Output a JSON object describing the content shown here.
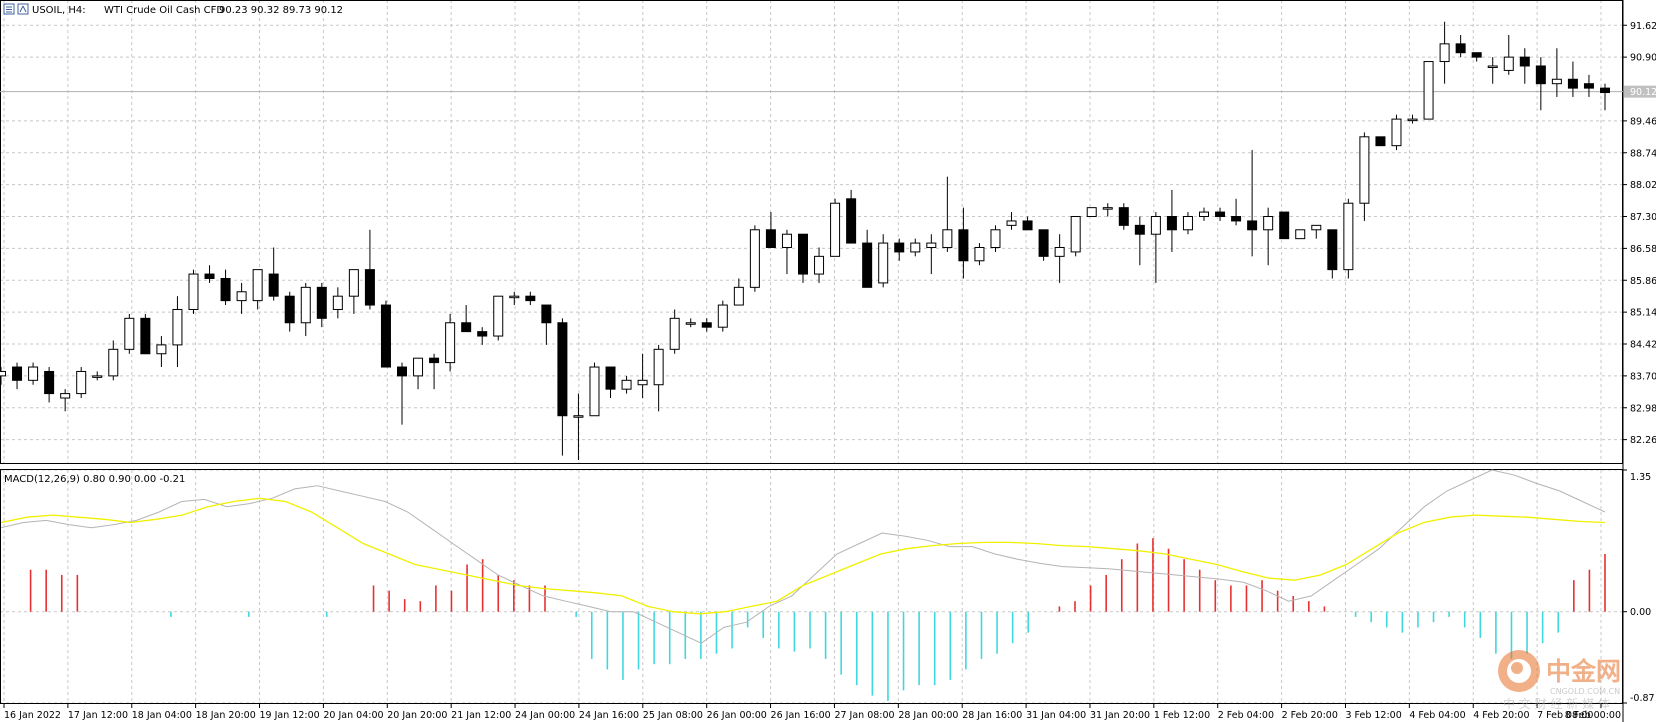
{
  "header": {
    "symbol": "USOIL, H4:",
    "description": "WTI Crude Oil Cash CFD",
    "ohlc": "90.23 90.32 89.73 90.12"
  },
  "macd_header": {
    "label": "MACD(12,26,9) 0.80 0.90 0.00 -0.21"
  },
  "price_axis": {
    "labels": [
      "91.62",
      "90.90",
      "89.46",
      "88.74",
      "88.02",
      "87.30",
      "86.58",
      "85.86",
      "85.14",
      "84.42",
      "83.70",
      "82.98",
      "82.26"
    ],
    "current_price_label": "90.12"
  },
  "macd_axis": {
    "labels": [
      "1.35",
      "0.00",
      "-0.87"
    ]
  },
  "time_axis": {
    "labels": [
      "16 Jan 2022",
      "17 Jan 12:00",
      "18 Jan 04:00",
      "18 Jan 20:00",
      "19 Jan 12:00",
      "20 Jan 04:00",
      "20 Jan 20:00",
      "21 Jan 12:00",
      "24 Jan 00:00",
      "24 Jan 16:00",
      "25 Jan 08:00",
      "26 Jan 00:00",
      "26 Jan 16:00",
      "27 Jan 08:00",
      "28 Jan 00:00",
      "28 Jan 16:00",
      "31 Jan 04:00",
      "31 Jan 20:00",
      "1 Feb 12:00",
      "2 Feb 04:00",
      "2 Feb 20:00",
      "3 Feb 12:00",
      "4 Feb 04:00",
      "4 Feb 20:00",
      "7 Feb 08:00",
      "8 Feb 00:00"
    ]
  },
  "watermark": {
    "brand": "中金网",
    "site": "CNGOLD.COM.CN",
    "slogan": "中 文 财 经 新 媒 体"
  },
  "colors": {
    "bull_body": "#ffffff",
    "bear_body": "#000000",
    "candle_outline": "#000000",
    "grid": "#c8c8c8",
    "macd_line": "#b4b4b4",
    "signal_line": "#f0f000",
    "hist_positive": "#e83030",
    "hist_negative": "#40d8e0",
    "watermark_orange": "#e8702a"
  },
  "chart_data": [
    {
      "type": "candlestick",
      "title": "USOIL, H4: WTI Crude Oil Cash CFD",
      "ylim": [
        81.8,
        92.1
      ],
      "candles": [
        {
          "o": 83.7,
          "h": 83.9,
          "l": 83.5,
          "c": 83.8
        },
        {
          "o": 83.9,
          "h": 84.0,
          "l": 83.4,
          "c": 83.6
        },
        {
          "o": 83.6,
          "h": 84.0,
          "l": 83.5,
          "c": 83.9
        },
        {
          "o": 83.8,
          "h": 83.9,
          "l": 83.1,
          "c": 83.3
        },
        {
          "o": 83.2,
          "h": 83.4,
          "l": 82.9,
          "c": 83.3
        },
        {
          "o": 83.3,
          "h": 83.9,
          "l": 83.2,
          "c": 83.8
        },
        {
          "o": 83.7,
          "h": 83.8,
          "l": 83.6,
          "c": 83.7
        },
        {
          "o": 83.7,
          "h": 84.5,
          "l": 83.6,
          "c": 84.3
        },
        {
          "o": 84.3,
          "h": 85.1,
          "l": 84.2,
          "c": 85.0
        },
        {
          "o": 85.0,
          "h": 85.1,
          "l": 84.2,
          "c": 84.2
        },
        {
          "o": 84.2,
          "h": 84.6,
          "l": 83.9,
          "c": 84.4
        },
        {
          "o": 84.4,
          "h": 85.5,
          "l": 83.9,
          "c": 85.2
        },
        {
          "o": 85.2,
          "h": 86.1,
          "l": 85.1,
          "c": 86.0
        },
        {
          "o": 86.0,
          "h": 86.2,
          "l": 85.8,
          "c": 85.9
        },
        {
          "o": 85.9,
          "h": 86.1,
          "l": 85.3,
          "c": 85.4
        },
        {
          "o": 85.4,
          "h": 85.8,
          "l": 85.1,
          "c": 85.6
        },
        {
          "o": 85.4,
          "h": 86.1,
          "l": 85.2,
          "c": 86.1
        },
        {
          "o": 86.0,
          "h": 86.6,
          "l": 85.4,
          "c": 85.5
        },
        {
          "o": 85.5,
          "h": 85.6,
          "l": 84.7,
          "c": 84.9
        },
        {
          "o": 84.9,
          "h": 85.8,
          "l": 84.6,
          "c": 85.7
        },
        {
          "o": 85.7,
          "h": 85.8,
          "l": 84.8,
          "c": 85.0
        },
        {
          "o": 85.2,
          "h": 85.7,
          "l": 85.0,
          "c": 85.5
        },
        {
          "o": 85.5,
          "h": 86.1,
          "l": 85.1,
          "c": 86.1
        },
        {
          "o": 86.1,
          "h": 87.0,
          "l": 85.2,
          "c": 85.3
        },
        {
          "o": 85.3,
          "h": 85.4,
          "l": 83.9,
          "c": 83.9
        },
        {
          "o": 83.9,
          "h": 84.0,
          "l": 82.6,
          "c": 83.7
        },
        {
          "o": 83.7,
          "h": 84.1,
          "l": 83.4,
          "c": 84.1
        },
        {
          "o": 84.1,
          "h": 84.2,
          "l": 83.4,
          "c": 84.0
        },
        {
          "o": 84.0,
          "h": 85.1,
          "l": 83.8,
          "c": 84.9
        },
        {
          "o": 84.9,
          "h": 85.3,
          "l": 84.7,
          "c": 84.7
        },
        {
          "o": 84.7,
          "h": 84.8,
          "l": 84.4,
          "c": 84.6
        },
        {
          "o": 84.6,
          "h": 85.5,
          "l": 84.5,
          "c": 85.5
        },
        {
          "o": 85.5,
          "h": 85.6,
          "l": 85.3,
          "c": 85.5
        },
        {
          "o": 85.5,
          "h": 85.6,
          "l": 85.3,
          "c": 85.4
        },
        {
          "o": 85.3,
          "h": 85.3,
          "l": 84.4,
          "c": 84.9
        },
        {
          "o": 84.9,
          "h": 85.0,
          "l": 81.9,
          "c": 82.8
        },
        {
          "o": 82.8,
          "h": 83.3,
          "l": 81.8,
          "c": 82.8
        },
        {
          "o": 82.8,
          "h": 84.0,
          "l": 82.8,
          "c": 83.9
        },
        {
          "o": 83.9,
          "h": 83.9,
          "l": 83.2,
          "c": 83.4
        },
        {
          "o": 83.4,
          "h": 83.7,
          "l": 83.3,
          "c": 83.6
        },
        {
          "o": 83.5,
          "h": 84.2,
          "l": 83.2,
          "c": 83.6
        },
        {
          "o": 83.5,
          "h": 84.4,
          "l": 82.9,
          "c": 84.3
        },
        {
          "o": 84.3,
          "h": 85.2,
          "l": 84.2,
          "c": 85.0
        },
        {
          "o": 84.9,
          "h": 85.0,
          "l": 84.8,
          "c": 84.9
        },
        {
          "o": 84.9,
          "h": 85.0,
          "l": 84.7,
          "c": 84.8
        },
        {
          "o": 84.8,
          "h": 85.4,
          "l": 84.7,
          "c": 85.3
        },
        {
          "o": 85.3,
          "h": 85.9,
          "l": 85.3,
          "c": 85.7
        },
        {
          "o": 85.7,
          "h": 87.1,
          "l": 85.6,
          "c": 87.0
        },
        {
          "o": 87.0,
          "h": 87.4,
          "l": 86.6,
          "c": 86.6
        },
        {
          "o": 86.6,
          "h": 87.0,
          "l": 86.0,
          "c": 86.9
        },
        {
          "o": 86.9,
          "h": 86.9,
          "l": 85.8,
          "c": 86.0
        },
        {
          "o": 86.0,
          "h": 86.6,
          "l": 85.8,
          "c": 86.4
        },
        {
          "o": 86.4,
          "h": 87.7,
          "l": 86.4,
          "c": 87.6
        },
        {
          "o": 87.7,
          "h": 87.9,
          "l": 86.7,
          "c": 86.7
        },
        {
          "o": 86.7,
          "h": 87.0,
          "l": 85.7,
          "c": 85.7
        },
        {
          "o": 85.8,
          "h": 86.9,
          "l": 85.7,
          "c": 86.7
        },
        {
          "o": 86.7,
          "h": 86.8,
          "l": 86.3,
          "c": 86.5
        },
        {
          "o": 86.5,
          "h": 86.8,
          "l": 86.4,
          "c": 86.7
        },
        {
          "o": 86.6,
          "h": 86.9,
          "l": 86.0,
          "c": 86.7
        },
        {
          "o": 86.6,
          "h": 88.2,
          "l": 86.5,
          "c": 87.0
        },
        {
          "o": 87.0,
          "h": 87.5,
          "l": 85.9,
          "c": 86.3
        },
        {
          "o": 86.3,
          "h": 86.7,
          "l": 86.2,
          "c": 86.6
        },
        {
          "o": 86.6,
          "h": 87.1,
          "l": 86.5,
          "c": 87.0
        },
        {
          "o": 87.1,
          "h": 87.4,
          "l": 87.0,
          "c": 87.2
        },
        {
          "o": 87.2,
          "h": 87.3,
          "l": 87.0,
          "c": 87.0
        },
        {
          "o": 87.0,
          "h": 87.0,
          "l": 86.3,
          "c": 86.4
        },
        {
          "o": 86.4,
          "h": 86.9,
          "l": 85.8,
          "c": 86.6
        },
        {
          "o": 86.5,
          "h": 87.3,
          "l": 86.4,
          "c": 87.3
        },
        {
          "o": 87.3,
          "h": 87.5,
          "l": 87.3,
          "c": 87.5
        },
        {
          "o": 87.5,
          "h": 87.6,
          "l": 87.3,
          "c": 87.5
        },
        {
          "o": 87.5,
          "h": 87.6,
          "l": 87.0,
          "c": 87.1
        },
        {
          "o": 87.1,
          "h": 87.3,
          "l": 86.2,
          "c": 86.9
        },
        {
          "o": 86.9,
          "h": 87.4,
          "l": 85.8,
          "c": 87.3
        },
        {
          "o": 87.3,
          "h": 87.9,
          "l": 86.5,
          "c": 87.0
        },
        {
          "o": 87.0,
          "h": 87.4,
          "l": 86.9,
          "c": 87.3
        },
        {
          "o": 87.3,
          "h": 87.5,
          "l": 87.2,
          "c": 87.4
        },
        {
          "o": 87.4,
          "h": 87.5,
          "l": 87.2,
          "c": 87.3
        },
        {
          "o": 87.3,
          "h": 87.7,
          "l": 87.1,
          "c": 87.2
        },
        {
          "o": 87.2,
          "h": 88.8,
          "l": 86.4,
          "c": 87.0
        },
        {
          "o": 87.0,
          "h": 87.5,
          "l": 86.2,
          "c": 87.3
        },
        {
          "o": 87.4,
          "h": 87.4,
          "l": 86.8,
          "c": 86.8
        },
        {
          "o": 86.8,
          "h": 87.0,
          "l": 86.8,
          "c": 87.0
        },
        {
          "o": 87.0,
          "h": 87.1,
          "l": 86.8,
          "c": 87.1
        },
        {
          "o": 87.0,
          "h": 87.0,
          "l": 85.9,
          "c": 86.1
        },
        {
          "o": 86.1,
          "h": 87.7,
          "l": 85.9,
          "c": 87.6
        },
        {
          "o": 87.6,
          "h": 89.2,
          "l": 87.2,
          "c": 89.1
        },
        {
          "o": 89.1,
          "h": 89.1,
          "l": 88.9,
          "c": 88.9
        },
        {
          "o": 88.9,
          "h": 89.6,
          "l": 88.8,
          "c": 89.5
        },
        {
          "o": 89.5,
          "h": 89.6,
          "l": 89.4,
          "c": 89.5
        },
        {
          "o": 89.5,
          "h": 90.8,
          "l": 89.5,
          "c": 90.8
        },
        {
          "o": 90.8,
          "h": 91.7,
          "l": 90.3,
          "c": 91.2
        },
        {
          "o": 91.2,
          "h": 91.4,
          "l": 90.9,
          "c": 91.0
        },
        {
          "o": 91.0,
          "h": 91.0,
          "l": 90.8,
          "c": 90.9
        },
        {
          "o": 90.7,
          "h": 90.9,
          "l": 90.3,
          "c": 90.7
        },
        {
          "o": 90.6,
          "h": 91.4,
          "l": 90.5,
          "c": 90.9
        },
        {
          "o": 90.9,
          "h": 91.1,
          "l": 90.3,
          "c": 90.7
        },
        {
          "o": 90.7,
          "h": 90.9,
          "l": 89.7,
          "c": 90.3
        },
        {
          "o": 90.3,
          "h": 91.1,
          "l": 90.0,
          "c": 90.4
        },
        {
          "o": 90.4,
          "h": 90.8,
          "l": 90.0,
          "c": 90.2
        },
        {
          "o": 90.3,
          "h": 90.5,
          "l": 90.0,
          "c": 90.2
        },
        {
          "o": 90.2,
          "h": 90.3,
          "l": 89.7,
          "c": 90.1
        }
      ]
    },
    {
      "type": "bar",
      "title": "MACD(12,26,9) 0.80 0.90 0.00 -0.21",
      "ylim": [
        -0.87,
        1.35
      ],
      "histogram": [
        0.0,
        0.4,
        0.4,
        0.35,
        0.35,
        0.0,
        0.0,
        0.0,
        0.0,
        0.0,
        -0.05,
        0.0,
        0.0,
        0.0,
        0.0,
        -0.05,
        0.0,
        0.0,
        0.0,
        0.0,
        -0.05,
        0.0,
        0.0,
        0.25,
        0.2,
        0.12,
        0.1,
        0.25,
        0.2,
        0.45,
        0.5,
        0.35,
        0.3,
        0.25,
        0.25,
        0.0,
        -0.05,
        -0.45,
        -0.55,
        -0.65,
        -0.55,
        -0.5,
        -0.5,
        -0.45,
        -0.45,
        -0.4,
        -0.35,
        -0.15,
        -0.25,
        -0.35,
        -0.38,
        -0.35,
        -0.45,
        -0.6,
        -0.7,
        -0.8,
        -0.85,
        -0.75,
        -0.7,
        -0.7,
        -0.65,
        -0.55,
        -0.45,
        -0.4,
        -0.3,
        -0.2,
        0.0,
        0.05,
        0.1,
        0.25,
        0.35,
        0.5,
        0.65,
        0.7,
        0.6,
        0.5,
        0.4,
        0.3,
        0.25,
        0.25,
        0.3,
        0.2,
        0.15,
        0.1,
        0.05,
        0.0,
        -0.05,
        -0.1,
        -0.15,
        -0.2,
        -0.15,
        -0.1,
        -0.05,
        -0.15,
        -0.25,
        -0.4,
        -0.45,
        -0.4,
        -0.3,
        -0.2,
        0.3,
        0.4,
        0.55
      ],
      "macd_line": [
        0.8,
        0.85,
        0.87,
        0.83,
        0.8,
        0.83,
        0.87,
        0.95,
        1.05,
        1.07,
        1.0,
        1.03,
        1.08,
        1.17,
        1.2,
        1.15,
        1.1,
        1.05,
        0.95,
        0.8,
        0.65,
        0.5,
        0.35,
        0.25,
        0.15,
        0.1,
        0.05,
        0.0,
        0.0,
        -0.1,
        -0.2,
        -0.3,
        -0.15,
        -0.1,
        0.05,
        0.15,
        0.35,
        0.55,
        0.65,
        0.75,
        0.72,
        0.68,
        0.62,
        0.62,
        0.55,
        0.5,
        0.46,
        0.43,
        0.42,
        0.41,
        0.39,
        0.37,
        0.35,
        0.33,
        0.31,
        0.28,
        0.2,
        0.1,
        0.15,
        0.3,
        0.45,
        0.6,
        0.8,
        1.0,
        1.15,
        1.25,
        1.35,
        1.3,
        1.22,
        1.15,
        1.05,
        0.95
      ],
      "signal_line": [
        0.85,
        0.9,
        0.92,
        0.9,
        0.88,
        0.85,
        0.88,
        0.92,
        1.0,
        1.05,
        1.08,
        1.05,
        0.95,
        0.8,
        0.65,
        0.55,
        0.45,
        0.4,
        0.35,
        0.3,
        0.25,
        0.22,
        0.2,
        0.18,
        0.15,
        0.05,
        0.0,
        -0.02,
        0.0,
        0.05,
        0.1,
        0.25,
        0.35,
        0.45,
        0.55,
        0.6,
        0.63,
        0.65,
        0.66,
        0.66,
        0.65,
        0.63,
        0.62,
        0.6,
        0.58,
        0.55,
        0.5,
        0.45,
        0.38,
        0.32,
        0.3,
        0.35,
        0.45,
        0.6,
        0.75,
        0.85,
        0.9,
        0.92,
        0.91,
        0.9,
        0.88,
        0.86,
        0.85
      ]
    }
  ]
}
